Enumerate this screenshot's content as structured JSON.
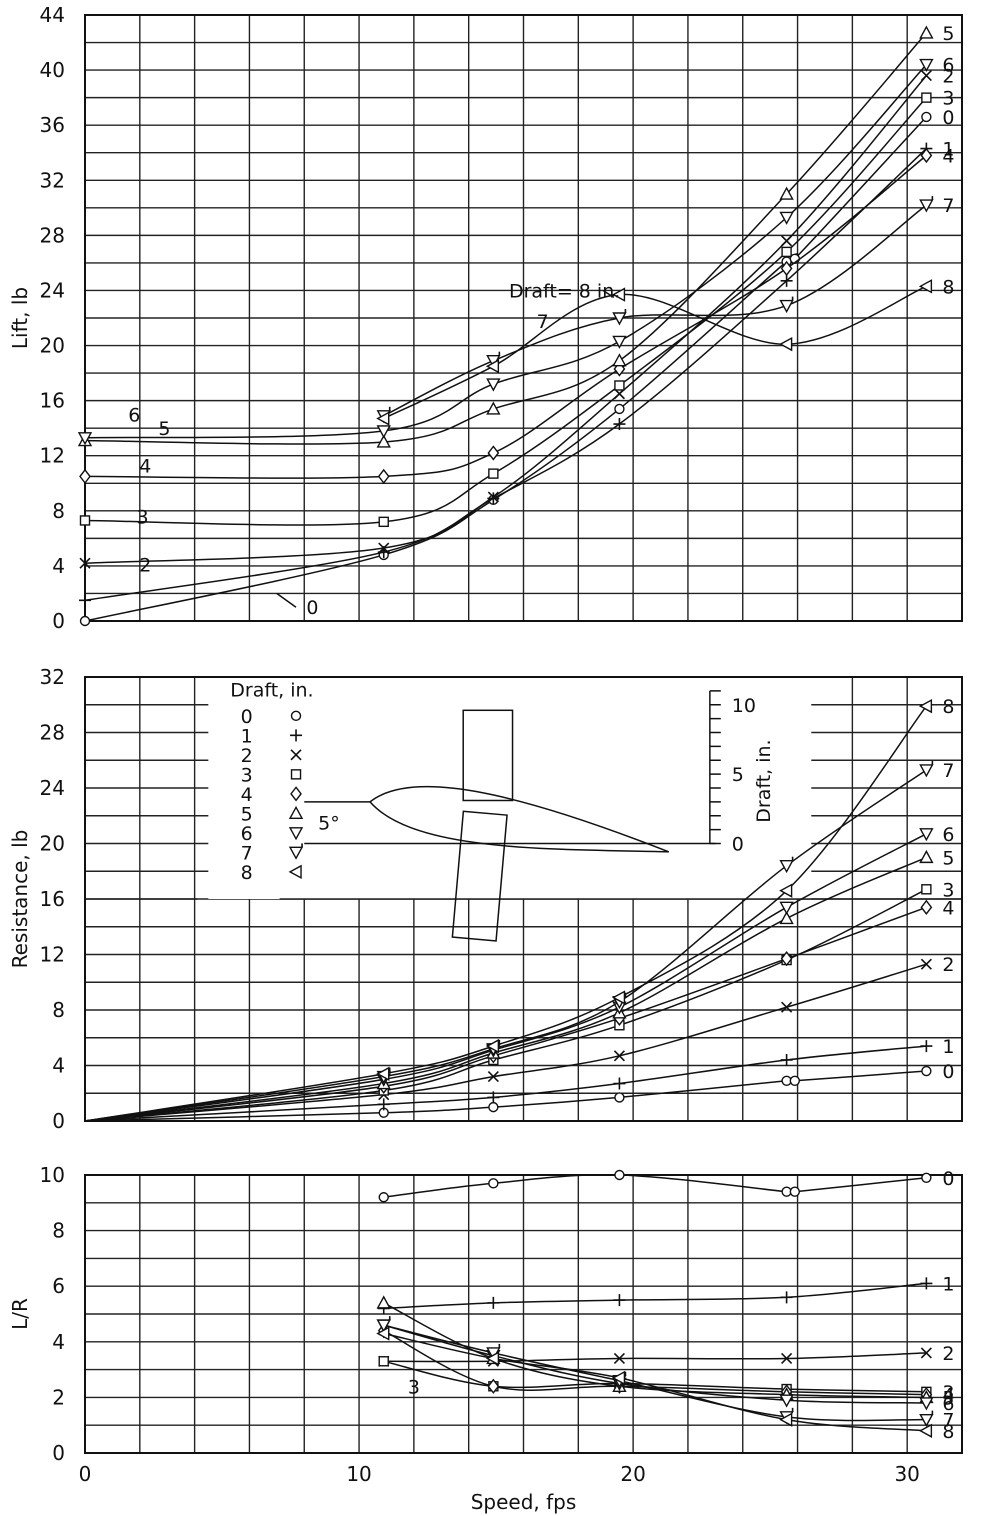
{
  "chart_data": [
    {
      "type": "line",
      "ylabel": "Lift, lb",
      "xlim": [
        0,
        32
      ],
      "ylim": [
        0,
        44
      ],
      "yticks": [
        "0",
        "4",
        "8",
        "12",
        "16",
        "20",
        "24",
        "28",
        "32",
        "36",
        "40",
        "44"
      ],
      "annotation": "Draft= 8 in.",
      "series": [
        {
          "name": "0",
          "points": [
            [
              0,
              0
            ],
            [
              10.9,
              4.8
            ],
            [
              14.9,
              8.8
            ],
            [
              19.5,
              15.4
            ],
            [
              25.6,
              26.1
            ],
            [
              25.9,
              26.3
            ],
            [
              30.7,
              36.6
            ]
          ]
        },
        {
          "name": "1",
          "points": [
            [
              0,
              1.5
            ],
            [
              10.9,
              5.0
            ],
            [
              14.9,
              8.9
            ],
            [
              19.5,
              14.3
            ],
            [
              25.6,
              24.7
            ],
            [
              30.7,
              34.3
            ]
          ]
        },
        {
          "name": "2",
          "points": [
            [
              0,
              4.2
            ],
            [
              10.9,
              5.3
            ],
            [
              14.9,
              9.0
            ],
            [
              19.5,
              16.5
            ],
            [
              25.6,
              27.6
            ],
            [
              30.7,
              39.6
            ]
          ]
        },
        {
          "name": "3",
          "points": [
            [
              0,
              7.3
            ],
            [
              10.9,
              7.2
            ],
            [
              14.9,
              10.7
            ],
            [
              19.5,
              17.1
            ],
            [
              25.6,
              26.8
            ],
            [
              30.7,
              38.0
            ]
          ]
        },
        {
          "name": "4",
          "points": [
            [
              0,
              10.5
            ],
            [
              10.9,
              10.5
            ],
            [
              14.9,
              12.2
            ],
            [
              19.5,
              18.3
            ],
            [
              25.6,
              25.6
            ],
            [
              30.7,
              33.8
            ]
          ]
        },
        {
          "name": "5",
          "points": [
            [
              0,
              13.1
            ],
            [
              10.9,
              13.0
            ],
            [
              14.9,
              15.4
            ],
            [
              19.5,
              18.9
            ],
            [
              25.6,
              31.0
            ],
            [
              30.7,
              42.7
            ]
          ]
        },
        {
          "name": "6",
          "points": [
            [
              0,
              13.3
            ],
            [
              10.9,
              13.8
            ],
            [
              14.9,
              17.2
            ],
            [
              19.5,
              20.3
            ],
            [
              25.6,
              29.3
            ],
            [
              30.7,
              40.4
            ]
          ]
        },
        {
          "name": "7",
          "points": [
            [
              10.9,
              14.9
            ],
            [
              14.9,
              18.9
            ],
            [
              19.5,
              22.0
            ],
            [
              25.6,
              22.9
            ],
            [
              30.7,
              30.2
            ]
          ]
        },
        {
          "name": "8",
          "points": [
            [
              10.9,
              14.7
            ],
            [
              14.9,
              18.5
            ],
            [
              19.5,
              23.7
            ],
            [
              25.6,
              20.1
            ],
            [
              30.7,
              24.3
            ]
          ]
        }
      ]
    },
    {
      "type": "line",
      "ylabel": "Resistance, lb",
      "xlim": [
        0,
        32
      ],
      "ylim": [
        0,
        32
      ],
      "yticks": [
        "0",
        "4",
        "8",
        "12",
        "16",
        "20",
        "24",
        "28",
        "32"
      ],
      "legend_title": "Draft, in.",
      "legend": [
        {
          "label": "0",
          "marker": "circle",
          "symbol": "o"
        },
        {
          "label": "1",
          "marker": "plus",
          "symbol": "+"
        },
        {
          "label": "2",
          "marker": "x",
          "symbol": "×"
        },
        {
          "label": "3",
          "marker": "square",
          "symbol": "□"
        },
        {
          "label": "4",
          "marker": "diamond",
          "symbol": "◇"
        },
        {
          "label": "5",
          "marker": "tri-up",
          "symbol": "△"
        },
        {
          "label": "6",
          "marker": "tri-down",
          "symbol": "▽"
        },
        {
          "label": "7",
          "marker": "tri-down-flag",
          "symbol": "▽"
        },
        {
          "label": "8",
          "marker": "tri-left",
          "symbol": "◁"
        }
      ],
      "inset": {
        "angle_label": "5°",
        "scale_label": "Draft, in.",
        "scale_ticks": [
          "0",
          "5",
          "10"
        ]
      },
      "series": [
        {
          "name": "0",
          "points": [
            [
              0,
              0
            ],
            [
              10.9,
              0.6
            ],
            [
              14.9,
              1.0
            ],
            [
              19.5,
              1.7
            ],
            [
              25.6,
              2.9
            ],
            [
              25.9,
              2.9
            ],
            [
              30.7,
              3.6
            ]
          ]
        },
        {
          "name": "1",
          "points": [
            [
              0,
              0
            ],
            [
              10.9,
              1.2
            ],
            [
              14.9,
              1.7
            ],
            [
              19.5,
              2.7
            ],
            [
              25.6,
              4.4
            ],
            [
              30.7,
              5.4
            ]
          ]
        },
        {
          "name": "2",
          "points": [
            [
              0,
              0
            ],
            [
              10.9,
              1.9
            ],
            [
              14.9,
              3.2
            ],
            [
              19.5,
              4.7
            ],
            [
              25.6,
              8.2
            ],
            [
              30.7,
              11.3
            ]
          ]
        },
        {
          "name": "3",
          "points": [
            [
              0,
              0
            ],
            [
              10.9,
              2.2
            ],
            [
              14.9,
              4.4
            ],
            [
              19.5,
              6.9
            ],
            [
              25.6,
              11.6
            ],
            [
              30.7,
              16.7
            ]
          ]
        },
        {
          "name": "4",
          "points": [
            [
              0,
              0
            ],
            [
              10.9,
              2.5
            ],
            [
              14.9,
              4.7
            ],
            [
              19.5,
              7.4
            ],
            [
              25.6,
              11.7
            ],
            [
              30.7,
              15.4
            ]
          ]
        },
        {
          "name": "5",
          "points": [
            [
              0,
              0
            ],
            [
              10.9,
              2.7
            ],
            [
              14.9,
              4.9
            ],
            [
              19.5,
              7.8
            ],
            [
              25.6,
              14.6
            ],
            [
              30.7,
              19.0
            ]
          ]
        },
        {
          "name": "6",
          "points": [
            [
              0,
              0
            ],
            [
              10.9,
              3.0
            ],
            [
              14.9,
              5.1
            ],
            [
              19.5,
              8.2
            ],
            [
              25.6,
              15.4
            ],
            [
              30.7,
              20.7
            ]
          ]
        },
        {
          "name": "7",
          "points": [
            [
              0,
              0
            ],
            [
              10.9,
              3.2
            ],
            [
              14.9,
              5.2
            ],
            [
              19.5,
              8.6
            ],
            [
              25.6,
              18.4
            ],
            [
              30.7,
              25.3
            ]
          ]
        },
        {
          "name": "8",
          "points": [
            [
              0,
              0
            ],
            [
              10.9,
              3.4
            ],
            [
              14.9,
              5.4
            ],
            [
              19.5,
              8.9
            ],
            [
              25.6,
              16.6
            ],
            [
              30.7,
              29.9
            ]
          ]
        }
      ]
    },
    {
      "type": "line",
      "xlabel": "Speed, fps",
      "ylabel": "L/R",
      "xlim": [
        0,
        32
      ],
      "ylim": [
        0,
        10
      ],
      "xticks": [
        "0",
        "10",
        "20",
        "30"
      ],
      "yticks": [
        "0",
        "2",
        "4",
        "6",
        "8",
        "10"
      ],
      "series": [
        {
          "name": "0",
          "points": [
            [
              10.9,
              9.2
            ],
            [
              14.9,
              9.7
            ],
            [
              19.5,
              10.0
            ],
            [
              25.6,
              9.4
            ],
            [
              25.9,
              9.4
            ],
            [
              30.7,
              9.9
            ]
          ]
        },
        {
          "name": "1",
          "points": [
            [
              10.9,
              5.2
            ],
            [
              14.9,
              5.4
            ],
            [
              19.5,
              5.5
            ],
            [
              25.6,
              5.6
            ],
            [
              30.7,
              6.1
            ]
          ]
        },
        {
          "name": "2",
          "points": [
            [
              10.9,
              3.3
            ],
            [
              14.9,
              3.3
            ],
            [
              19.5,
              3.4
            ],
            [
              25.6,
              3.4
            ],
            [
              30.7,
              3.6
            ]
          ]
        },
        {
          "name": "3",
          "points": [
            [
              10.9,
              3.3
            ],
            [
              14.9,
              2.4
            ],
            [
              19.5,
              2.5
            ],
            [
              25.6,
              2.3
            ],
            [
              30.7,
              2.2
            ]
          ]
        },
        {
          "name": "4",
          "points": [
            [
              10.9,
              4.4
            ],
            [
              14.9,
              2.4
            ],
            [
              19.5,
              2.4
            ],
            [
              25.6,
              2.2
            ],
            [
              30.7,
              2.1
            ]
          ]
        },
        {
          "name": "5",
          "points": [
            [
              10.9,
              5.4
            ],
            [
              14.9,
              3.4
            ],
            [
              19.5,
              2.4
            ],
            [
              25.6,
              2.1
            ],
            [
              30.7,
              2.0
            ]
          ]
        },
        {
          "name": "6",
          "points": [
            [
              10.9,
              4.6
            ],
            [
              14.9,
              3.5
            ],
            [
              19.5,
              2.5
            ],
            [
              25.6,
              1.9
            ],
            [
              30.7,
              1.8
            ]
          ]
        },
        {
          "name": "7",
          "points": [
            [
              10.9,
              4.6
            ],
            [
              14.9,
              3.6
            ],
            [
              19.5,
              2.6
            ],
            [
              25.6,
              1.3
            ],
            [
              30.7,
              1.2
            ]
          ]
        },
        {
          "name": "8",
          "points": [
            [
              10.9,
              4.3
            ],
            [
              14.9,
              3.4
            ],
            [
              19.5,
              2.7
            ],
            [
              25.6,
              1.2
            ],
            [
              30.7,
              0.8
            ]
          ]
        }
      ]
    }
  ]
}
